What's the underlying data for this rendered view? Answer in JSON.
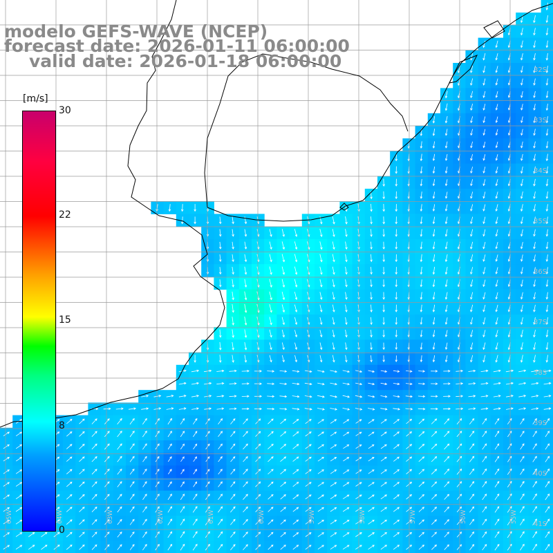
{
  "title": {
    "line1": "modelo GEFS-WAVE (NCEP)",
    "line2": "forecast date: 2026-01-11 06:00:00",
    "line3": "valid date: 2026-01-18 06:00:00"
  },
  "colorbar": {
    "unit": "[m/s]",
    "ticks": [
      "30",
      "22",
      "15",
      "8",
      "0"
    ],
    "tick_values": [
      30,
      22,
      15,
      8,
      0
    ],
    "range": [
      0,
      30
    ],
    "colors": [
      "#0000ff",
      "#00a0ff",
      "#00ffff",
      "#00ff80",
      "#00ff00",
      "#ffff00",
      "#ffa000",
      "#ff0000",
      "#ff0040",
      "#c8006c"
    ]
  },
  "map": {
    "variable": "wind speed and direction",
    "lat_labels": [
      "32S",
      "33S",
      "34S",
      "35S",
      "36S",
      "37S",
      "38S",
      "39S",
      "40S",
      "41S"
    ],
    "lon_labels": [
      "65W",
      "64W",
      "63W",
      "62W",
      "61W",
      "60W",
      "59W",
      "58W",
      "57W",
      "56W",
      "55W"
    ],
    "ocean_color": "#1ea8ff",
    "land_color": "#ffffff",
    "vector_color": "#ffffff"
  }
}
